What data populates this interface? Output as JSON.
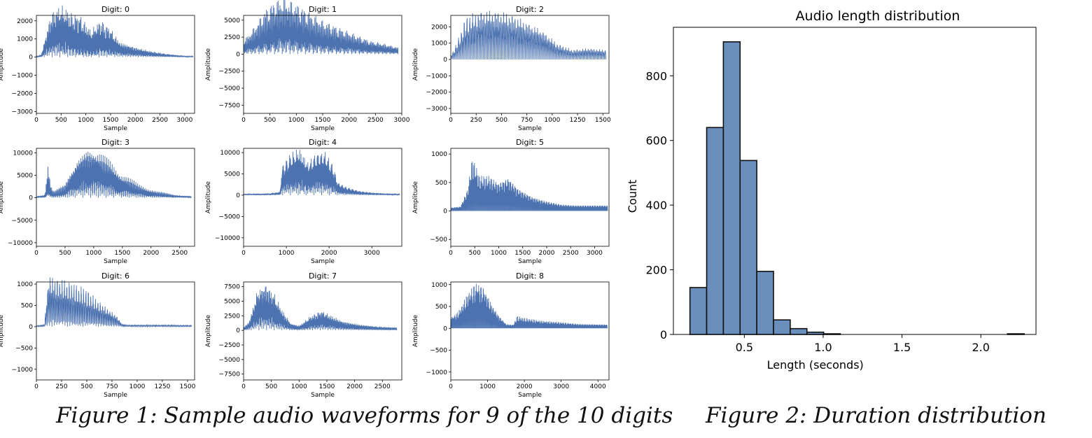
{
  "colors": {
    "waveform": "#4c72b0",
    "bar_fill": "#6a8fbd",
    "bar_edge": "#111111",
    "axis": "#000000"
  },
  "figure1": {
    "caption": "Figure 1: Sample audio waveforms for 9 of the 10 digits"
  },
  "figure2": {
    "caption": "Figure 2: Duration distribution"
  },
  "chart_data": [
    {
      "type": "line",
      "title": "Digit: 0",
      "xlabel": "Sample",
      "ylabel": "Amplitude",
      "xlim": [
        0,
        3200
      ],
      "ylim": [
        -3100,
        2300
      ],
      "length": 3170,
      "xticks": [
        0,
        500,
        1000,
        1500,
        2000,
        2500,
        3000
      ],
      "yticks": [
        -3000,
        -2000,
        -1000,
        0,
        1000,
        2000
      ],
      "envelope_x": [
        0,
        100,
        300,
        500,
        700,
        900,
        1100,
        1300,
        1500,
        1700,
        2000,
        2300,
        2600,
        2900,
        3170
      ],
      "envelope_pos": [
        40,
        150,
        2000,
        2100,
        1200,
        700,
        550,
        1000,
        900,
        800,
        550,
        350,
        200,
        100,
        40
      ],
      "envelope_neg": [
        -40,
        -150,
        -2500,
        -2900,
        -2500,
        -2300,
        -1500,
        -2100,
        -1600,
        -800,
        -500,
        -300,
        -150,
        -80,
        -40
      ],
      "cycles": 210
    },
    {
      "type": "line",
      "title": "Digit: 1",
      "xlabel": "Sample",
      "ylabel": "Amplitude",
      "xlim": [
        0,
        3000
      ],
      "ylim": [
        -8700,
        5700
      ],
      "length": 2930,
      "xticks": [
        0,
        500,
        1000,
        1500,
        2000,
        2500,
        3000
      ],
      "yticks": [
        -7500,
        -5000,
        -2500,
        0,
        2500,
        5000
      ],
      "envelope_x": [
        0,
        200,
        400,
        600,
        800,
        1000,
        1200,
        1500,
        1800,
        2100,
        2400,
        2700,
        2930
      ],
      "envelope_pos": [
        1500,
        2500,
        3500,
        4500,
        5200,
        4800,
        4000,
        3000,
        2600,
        2000,
        1500,
        1000,
        800
      ],
      "envelope_neg": [
        -2000,
        -4000,
        -6500,
        -8000,
        -8300,
        -7500,
        -6500,
        -5000,
        -4000,
        -3000,
        -2000,
        -1500,
        -1000
      ],
      "cycles": 160
    },
    {
      "type": "line",
      "title": "Digit: 2",
      "xlabel": "Sample",
      "ylabel": "Amplitude",
      "xlim": [
        0,
        1560
      ],
      "ylim": [
        -3300,
        2700
      ],
      "length": 1530,
      "xticks": [
        0,
        250,
        500,
        750,
        1000,
        1250,
        1500
      ],
      "yticks": [
        -3000,
        -2000,
        -1000,
        0,
        1000,
        2000
      ],
      "envelope_x": [
        0,
        50,
        150,
        300,
        450,
        600,
        750,
        900,
        1050,
        1200,
        1350,
        1530
      ],
      "envelope_pos": [
        200,
        600,
        1800,
        2500,
        2500,
        2300,
        2000,
        1600,
        800,
        500,
        600,
        500
      ],
      "envelope_neg": [
        -200,
        -900,
        -2700,
        -3000,
        -3000,
        -2800,
        -2300,
        -1800,
        -1000,
        -600,
        -700,
        -600
      ],
      "cycles": 55
    },
    {
      "type": "line",
      "title": "Digit: 3",
      "xlabel": "Sample",
      "ylabel": "Amplitude",
      "xlim": [
        0,
        2760
      ],
      "ylim": [
        -10800,
        11000
      ],
      "length": 2700,
      "xticks": [
        0,
        500,
        1000,
        1500,
        2000,
        2500
      ],
      "yticks": [
        -10000,
        -5000,
        0,
        5000,
        10000
      ],
      "envelope_x": [
        0,
        150,
        200,
        250,
        300,
        500,
        700,
        900,
        1100,
        1300,
        1500,
        1800,
        2100,
        2400,
        2700
      ],
      "envelope_pos": [
        300,
        500,
        2500,
        1500,
        800,
        2000,
        7000,
        10500,
        10000,
        8500,
        5500,
        3000,
        1500,
        700,
        300
      ],
      "envelope_neg": [
        -300,
        -800,
        -8500,
        -3000,
        -1500,
        -3000,
        -9500,
        -10500,
        -9000,
        -6500,
        -4000,
        -2000,
        -1000,
        -500,
        -300
      ],
      "cycles": 170
    },
    {
      "type": "line",
      "title": "Digit: 4",
      "xlabel": "Sample",
      "ylabel": "Amplitude",
      "xlim": [
        0,
        3700
      ],
      "ylim": [
        -12000,
        11000
      ],
      "length": 3650,
      "xticks": [
        0,
        1000,
        2000,
        3000
      ],
      "yticks": [
        -10000,
        -5000,
        0,
        5000,
        10000
      ],
      "envelope_x": [
        0,
        600,
        850,
        900,
        1100,
        1300,
        1500,
        1700,
        1900,
        2100,
        2200,
        2400,
        2700,
        3000,
        3300,
        3650
      ],
      "envelope_pos": [
        300,
        400,
        800,
        6000,
        9000,
        8500,
        6000,
        9500,
        10500,
        7000,
        3000,
        1800,
        1000,
        600,
        400,
        300
      ],
      "envelope_neg": [
        -300,
        -400,
        -800,
        -7000,
        -10000,
        -11500,
        -8000,
        -10000,
        -9500,
        -6000,
        -3000,
        -2000,
        -1000,
        -600,
        -400,
        -300
      ],
      "cycles": 230
    },
    {
      "type": "line",
      "title": "Digit: 5",
      "xlabel": "Sample",
      "ylabel": "Amplitude",
      "xlim": [
        0,
        3300
      ],
      "ylim": [
        -620,
        1100
      ],
      "length": 3270,
      "xticks": [
        0,
        500,
        1000,
        1500,
        2000,
        2500,
        3000
      ],
      "yticks": [
        -500,
        0,
        500,
        1000
      ],
      "envelope_x": [
        0,
        200,
        350,
        450,
        600,
        800,
        1000,
        1200,
        1400,
        1700,
        2000,
        2300,
        2600,
        2900,
        3270
      ],
      "envelope_pos": [
        60,
        80,
        400,
        1000,
        650,
        650,
        500,
        600,
        400,
        250,
        150,
        110,
        100,
        100,
        100
      ],
      "envelope_neg": [
        -60,
        -80,
        -300,
        -500,
        -450,
        -500,
        -500,
        -580,
        -400,
        -250,
        -180,
        -120,
        -100,
        -100,
        -100
      ],
      "cycles": 220
    },
    {
      "type": "line",
      "title": "Digit: 6",
      "xlabel": "Sample",
      "ylabel": "Amplitude",
      "xlim": [
        0,
        1570
      ],
      "ylim": [
        -1250,
        1050
      ],
      "length": 1540,
      "xticks": [
        0,
        250,
        500,
        750,
        1000,
        1250,
        1500
      ],
      "yticks": [
        -1000,
        -500,
        0,
        500,
        1000
      ],
      "envelope_x": [
        0,
        80,
        120,
        200,
        300,
        400,
        500,
        600,
        700,
        800,
        850,
        900,
        1100,
        1300,
        1540
      ],
      "envelope_pos": [
        20,
        50,
        950,
        800,
        750,
        650,
        550,
        450,
        350,
        200,
        60,
        40,
        40,
        40,
        30
      ],
      "envelope_neg": [
        -20,
        -50,
        -1200,
        -1150,
        -1100,
        -1000,
        -900,
        -650,
        -450,
        -250,
        -60,
        -40,
        -40,
        -40,
        -30
      ],
      "cycles": 65
    },
    {
      "type": "line",
      "title": "Digit: 7",
      "xlabel": "Sample",
      "ylabel": "Amplitude",
      "xlim": [
        0,
        2850
      ],
      "ylim": [
        -8500,
        8300
      ],
      "length": 2760,
      "xticks": [
        0,
        500,
        1000,
        1500,
        2000,
        2500
      ],
      "yticks": [
        -7500,
        -5000,
        -2500,
        0,
        2500,
        5000,
        7500
      ],
      "envelope_x": [
        0,
        100,
        250,
        400,
        550,
        700,
        850,
        1000,
        1200,
        1400,
        1600,
        1800,
        2100,
        2400,
        2760
      ],
      "envelope_pos": [
        500,
        1500,
        6000,
        7500,
        5000,
        3000,
        1200,
        800,
        2000,
        3000,
        2200,
        1500,
        1000,
        600,
        500
      ],
      "envelope_neg": [
        -500,
        -1500,
        -7000,
        -8000,
        -6500,
        -3500,
        -1200,
        -800,
        -2500,
        -3500,
        -2500,
        -1500,
        -1000,
        -700,
        -500
      ],
      "cycles": 210
    },
    {
      "type": "line",
      "title": "Digit: 8",
      "xlabel": "Sample",
      "ylabel": "Amplitude",
      "xlim": [
        0,
        4300
      ],
      "ylim": [
        -1180,
        1060
      ],
      "length": 4250,
      "xticks": [
        0,
        1000,
        2000,
        3000,
        4000
      ],
      "yticks": [
        -1000,
        -500,
        0,
        500,
        1000
      ],
      "envelope_x": [
        0,
        200,
        500,
        700,
        900,
        1100,
        1300,
        1500,
        1700,
        1800,
        2000,
        2500,
        3000,
        3500,
        4250
      ],
      "envelope_pos": [
        250,
        300,
        700,
        900,
        850,
        500,
        300,
        100,
        80,
        300,
        250,
        180,
        150,
        100,
        90
      ],
      "envelope_neg": [
        -250,
        -400,
        -900,
        -1100,
        -950,
        -600,
        -300,
        -100,
        -80,
        -200,
        -180,
        -150,
        -120,
        -100,
        -90
      ],
      "cycles": 330
    },
    {
      "type": "bar",
      "title": "Audio length distribution",
      "xlabel": "Length (seconds)",
      "ylabel": "Count",
      "xlim": [
        0.05,
        2.35
      ],
      "ylim": [
        0,
        950
      ],
      "xticks": [
        0.5,
        1.0,
        1.5,
        2.0
      ],
      "yticks": [
        0,
        200,
        400,
        600,
        800
      ],
      "bin_width": 0.106,
      "bins": [
        {
          "x0": 0.155,
          "count": 145
        },
        {
          "x0": 0.261,
          "count": 640
        },
        {
          "x0": 0.367,
          "count": 905
        },
        {
          "x0": 0.473,
          "count": 538
        },
        {
          "x0": 0.579,
          "count": 195
        },
        {
          "x0": 0.685,
          "count": 45
        },
        {
          "x0": 0.791,
          "count": 18
        },
        {
          "x0": 0.897,
          "count": 7
        },
        {
          "x0": 1.003,
          "count": 2
        },
        {
          "x0": 1.109,
          "count": 0
        },
        {
          "x0": 1.215,
          "count": 0
        },
        {
          "x0": 1.321,
          "count": 0
        },
        {
          "x0": 1.427,
          "count": 0
        },
        {
          "x0": 1.533,
          "count": 0
        },
        {
          "x0": 1.639,
          "count": 0
        },
        {
          "x0": 1.745,
          "count": 0
        },
        {
          "x0": 1.851,
          "count": 0
        },
        {
          "x0": 1.957,
          "count": 0
        },
        {
          "x0": 2.063,
          "count": 0
        },
        {
          "x0": 2.169,
          "count": 2
        }
      ]
    }
  ]
}
